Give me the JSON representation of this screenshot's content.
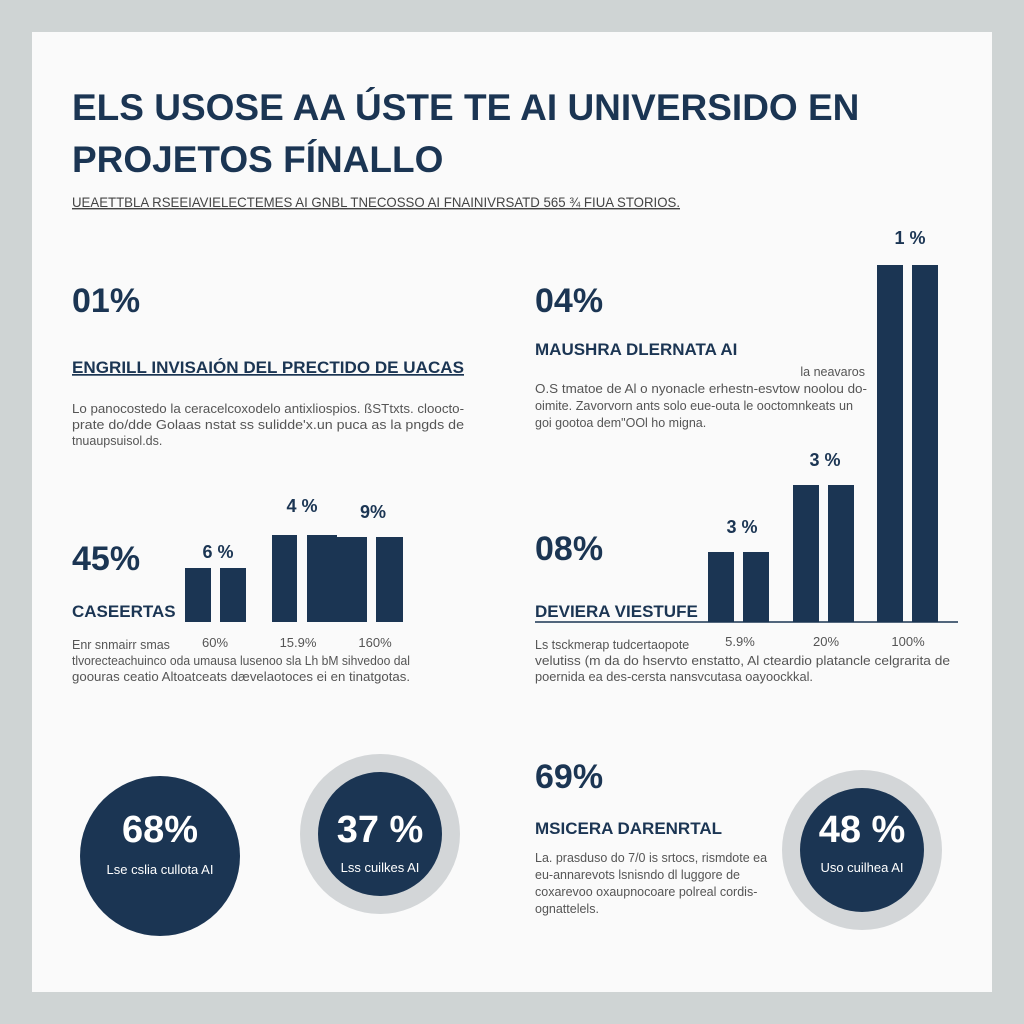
{
  "header": {
    "title": [
      "ELS USOSE AA ÚSTE TE AI UNIVERSIDO EN",
      "PROJETOS FÍNALLO"
    ],
    "subtitle": "UEAETTBLA RSEEIAVIELECTEMES AI GNBL TNECOSSO AI FNAINIVRSATD 565 ¾ FIUA STORIOS."
  },
  "left": {
    "stat1": "01%",
    "heading1": "ENGRILL INVISAIÓN DEL PRECTIDO DE UACAS",
    "para1": [
      "Lo panocostedo la ceracelcoxodelo antixliospios. ßSTtxts. cloocto-",
      "prate do/dde Golaas nstat ss sulidde'x.un puca as la pngds de",
      "tnuaupsuisol.ds."
    ],
    "stat2": "45%",
    "heading2": "CASEERTAS",
    "bar_labels": [
      "6 %",
      "4 %",
      "9%"
    ],
    "x_labels": [
      "60%",
      "15.9%",
      "160%"
    ],
    "para2": [
      "Enr snmairr smas",
      "tlvorecteachuinco oda umausa lusenoo sla Lh bM sihvedoo dal",
      "goouras ceatio Altoatceats dævelaotoces ei en tinatgotas."
    ]
  },
  "right": {
    "stat1": "04%",
    "heading1": "MAUSHRA DLERNATA AI",
    "side_note": "la neavaros",
    "para1": [
      "O.S tmatoe de Al o nyonacle erhestn-esvtow noolou do-",
      "oimite. Zavorvorn ants solo eue-outa le ooctomnkeats un",
      "goi gootoa dem\"OOl ho migna."
    ],
    "bar_labels": [
      "3 %",
      "3 %",
      "1 %"
    ],
    "stat2": "08%",
    "heading2": "DEVIERA VIESTUFE",
    "x_labels": [
      "5.9%",
      "20%",
      "100%"
    ],
    "para2": [
      "Ls tsckmerap tudcertaopote",
      "velutiss (m da do hservto enstatto, Al cteardio platancle celgrarita de",
      "poernida ea des-cersta nansvcutasa oayoockkal."
    ],
    "stat3": "69%",
    "heading3": "MSICERA DARENRTAL",
    "para3": [
      "La. prasduso do 7/0 is srtocs, rismdote ea",
      "eu-annarevots lsnisndo dl luggore de",
      "coxarevoo oxaupnocoare polreal cordis-",
      "ognattelels."
    ]
  },
  "circles": [
    {
      "value": "68%",
      "label": "Lse cslia cullota AI"
    },
    {
      "value": "37 %",
      "label": "Lss cuilkes AI"
    },
    {
      "value": "48 %",
      "label": "Uso cuilhea AI"
    }
  ]
}
